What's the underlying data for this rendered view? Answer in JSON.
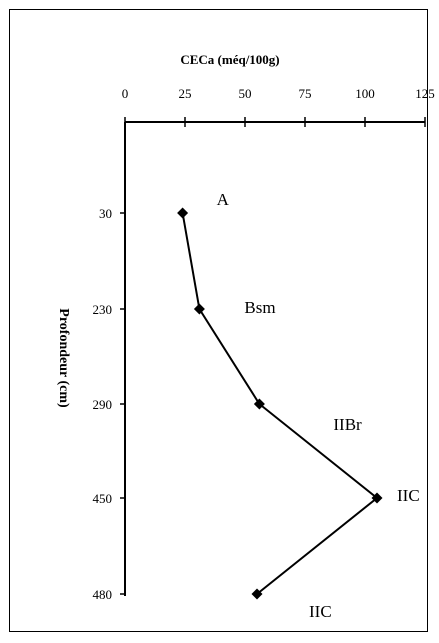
{
  "chart_data": {
    "type": "line",
    "title": "CECa (méq/100g)",
    "ylabel": "Profondeur (cm)",
    "x_axis_position": "top",
    "xlim": [
      0,
      125
    ],
    "x_ticks": [
      "0",
      "25",
      "50",
      "75",
      "100",
      "125"
    ],
    "y_ticks": [
      "30",
      "230",
      "290",
      "450",
      "480"
    ],
    "y_axis_categorical_inverted": true,
    "grid": false,
    "legend": "none",
    "series": [
      {
        "points": [
          {
            "depth": "30",
            "value": 24,
            "horizon": "A"
          },
          {
            "depth": "230",
            "value": 31,
            "horizon": "Bsm"
          },
          {
            "depth": "290",
            "value": 56,
            "horizon": "IIBr"
          },
          {
            "depth": "450",
            "value": 105,
            "horizon": "IIC"
          },
          {
            "depth": "480",
            "value": 55,
            "horizon": "IIC"
          }
        ]
      }
    ],
    "colors": {
      "line": "#000000",
      "marker": "#000000",
      "text": "#000000"
    }
  }
}
